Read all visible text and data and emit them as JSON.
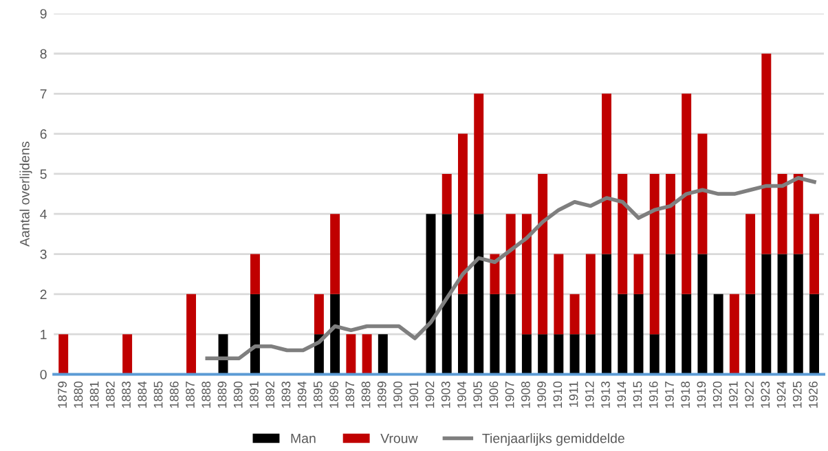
{
  "chart_data": {
    "type": "bar",
    "stacked": true,
    "ylabel": "Aantal overlijdens",
    "categories": [
      "1879",
      "1880",
      "1881",
      "1882",
      "1883",
      "1884",
      "1885",
      "1886",
      "1887",
      "1888",
      "1889",
      "1890",
      "1891",
      "1892",
      "1893",
      "1894",
      "1895",
      "1896",
      "1897",
      "1898",
      "1899",
      "1900",
      "1901",
      "1902",
      "1903",
      "1904",
      "1905",
      "1906",
      "1907",
      "1908",
      "1909",
      "1910",
      "1911",
      "1912",
      "1913",
      "1914",
      "1915",
      "1916",
      "1917",
      "1918",
      "1919",
      "1920",
      "1921",
      "1922",
      "1923",
      "1924",
      "1925",
      "1926"
    ],
    "series": [
      {
        "name": "Man",
        "color": "#000000",
        "values": [
          0,
          0,
          0,
          0,
          0,
          0,
          0,
          0,
          0,
          0,
          1,
          0,
          2,
          0,
          0,
          0,
          1,
          2,
          0,
          0,
          1,
          0,
          0,
          4,
          4,
          2,
          4,
          2,
          2,
          1,
          1,
          1,
          1,
          1,
          3,
          2,
          2,
          1,
          3,
          2,
          3,
          2,
          0,
          2,
          3,
          3,
          3,
          2
        ]
      },
      {
        "name": "Vrouw",
        "color": "#c00000",
        "values": [
          1,
          0,
          0,
          0,
          1,
          0,
          0,
          0,
          2,
          0,
          0,
          0,
          1,
          0,
          0,
          0,
          1,
          2,
          1,
          1,
          0,
          0,
          0,
          0,
          1,
          4,
          3,
          1,
          2,
          3,
          4,
          2,
          1,
          2,
          4,
          3,
          1,
          4,
          2,
          5,
          3,
          0,
          2,
          2,
          5,
          2,
          2,
          2
        ]
      },
      {
        "name": "Tienjaarlijks gemiddelde",
        "type": "line",
        "color": "#7f7f7f",
        "values": [
          null,
          null,
          null,
          null,
          null,
          null,
          null,
          null,
          null,
          0.4,
          0.4,
          0.4,
          0.7,
          0.7,
          0.6,
          0.6,
          0.8,
          1.2,
          1.1,
          1.2,
          1.2,
          1.2,
          0.9,
          1.3,
          1.9,
          2.5,
          2.9,
          2.8,
          3.1,
          3.4,
          3.8,
          4.1,
          4.3,
          4.2,
          4.4,
          4.3,
          3.9,
          4.1,
          4.2,
          4.5,
          4.6,
          4.5,
          4.5,
          4.6,
          4.7,
          4.7,
          4.9,
          4.8
        ]
      }
    ],
    "ylim": [
      0,
      9
    ],
    "yticks": [
      0,
      1,
      2,
      3,
      4,
      5,
      6,
      7,
      8,
      9
    ],
    "grid": "y",
    "legend": "bottom"
  }
}
